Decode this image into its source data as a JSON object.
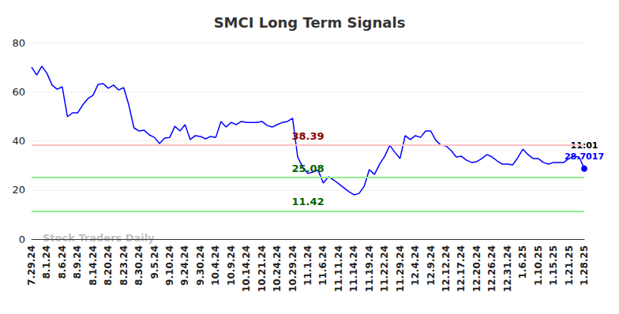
{
  "chart_data": {
    "type": "line",
    "title": "SMCI Long Term Signals",
    "watermark": "Stock Traders Daily",
    "categories": [
      "7.29.24",
      null,
      null,
      "8.1.24",
      null,
      null,
      "8.6.24",
      null,
      null,
      "8.9.24",
      null,
      null,
      "8.14.24",
      null,
      null,
      "8.20.24",
      null,
      null,
      "8.23.24",
      null,
      null,
      "8.30.24",
      null,
      null,
      "9.5.24",
      null,
      null,
      "9.10.24",
      null,
      null,
      "9.24.24",
      null,
      null,
      "9.30.24",
      null,
      null,
      "10.4.24",
      null,
      null,
      "10.9.24",
      null,
      null,
      "10.14.24",
      null,
      null,
      "10.21.24",
      null,
      null,
      "10.24.24",
      null,
      null,
      "10.29.24",
      null,
      null,
      "11.1.24",
      null,
      null,
      "11.6.24",
      null,
      null,
      "11.11.24",
      null,
      null,
      "11.14.24",
      null,
      null,
      "11.19.24",
      null,
      null,
      "11.22.24",
      null,
      null,
      "11.29.24",
      null,
      null,
      "12.4.24",
      null,
      null,
      "12.9.24",
      null,
      null,
      "12.12.24",
      null,
      null,
      "12.17.24",
      null,
      null,
      "12.20.24",
      null,
      null,
      "12.26.24",
      null,
      null,
      "12.31.24",
      null,
      null,
      "1.6.25",
      null,
      null,
      "1.10.25",
      null,
      null,
      "1.15.25",
      null,
      null,
      "1.21.25",
      null,
      null,
      "1.28.25"
    ],
    "values": [
      70.0,
      66.8,
      70.4,
      67.5,
      62.7,
      61.0,
      62.0,
      49.8,
      51.4,
      51.4,
      54.6,
      57.2,
      58.5,
      63.0,
      63.3,
      61.4,
      62.7,
      60.7,
      61.7,
      54.6,
      45.3,
      44.0,
      44.3,
      42.4,
      41.4,
      38.9,
      41.1,
      41.4,
      45.9,
      44.0,
      46.6,
      40.5,
      42.1,
      41.8,
      40.8,
      41.8,
      41.4,
      47.9,
      45.6,
      47.5,
      46.6,
      47.9,
      47.5,
      47.5,
      47.5,
      47.9,
      46.3,
      45.6,
      46.6,
      47.5,
      47.9,
      49.2,
      33.4,
      29.2,
      26.7,
      27.3,
      28.0,
      22.8,
      25.4,
      24.1,
      22.5,
      20.9,
      19.3,
      18.0,
      18.6,
      21.5,
      28.3,
      26.3,
      30.5,
      33.7,
      38.2,
      35.3,
      32.8,
      42.1,
      40.5,
      42.1,
      41.4,
      44.0,
      44.0,
      40.2,
      38.2,
      37.9,
      36.0,
      33.4,
      33.7,
      32.1,
      31.2,
      31.5,
      32.8,
      34.4,
      33.4,
      31.8,
      30.5,
      30.5,
      30.2,
      33.1,
      36.6,
      34.4,
      32.8,
      32.8,
      31.2,
      30.5,
      31.2,
      31.2,
      31.2,
      32.8,
      33.7,
      33.4,
      28.7017
    ],
    "color": "#0000ff",
    "last_point_label": "11:01",
    "reference_lines": [
      {
        "value": 38.39,
        "color": "#ffc0c0",
        "label_color": "#8b0000"
      },
      {
        "value": 25.08,
        "color": "#90ee90",
        "label_color": "#006400"
      },
      {
        "value": 11.42,
        "color": "#90ee90",
        "label_color": "#006400"
      }
    ],
    "ylim": [
      0,
      80
    ],
    "yticks": [
      0,
      20,
      40,
      60,
      80
    ],
    "grid": true
  }
}
